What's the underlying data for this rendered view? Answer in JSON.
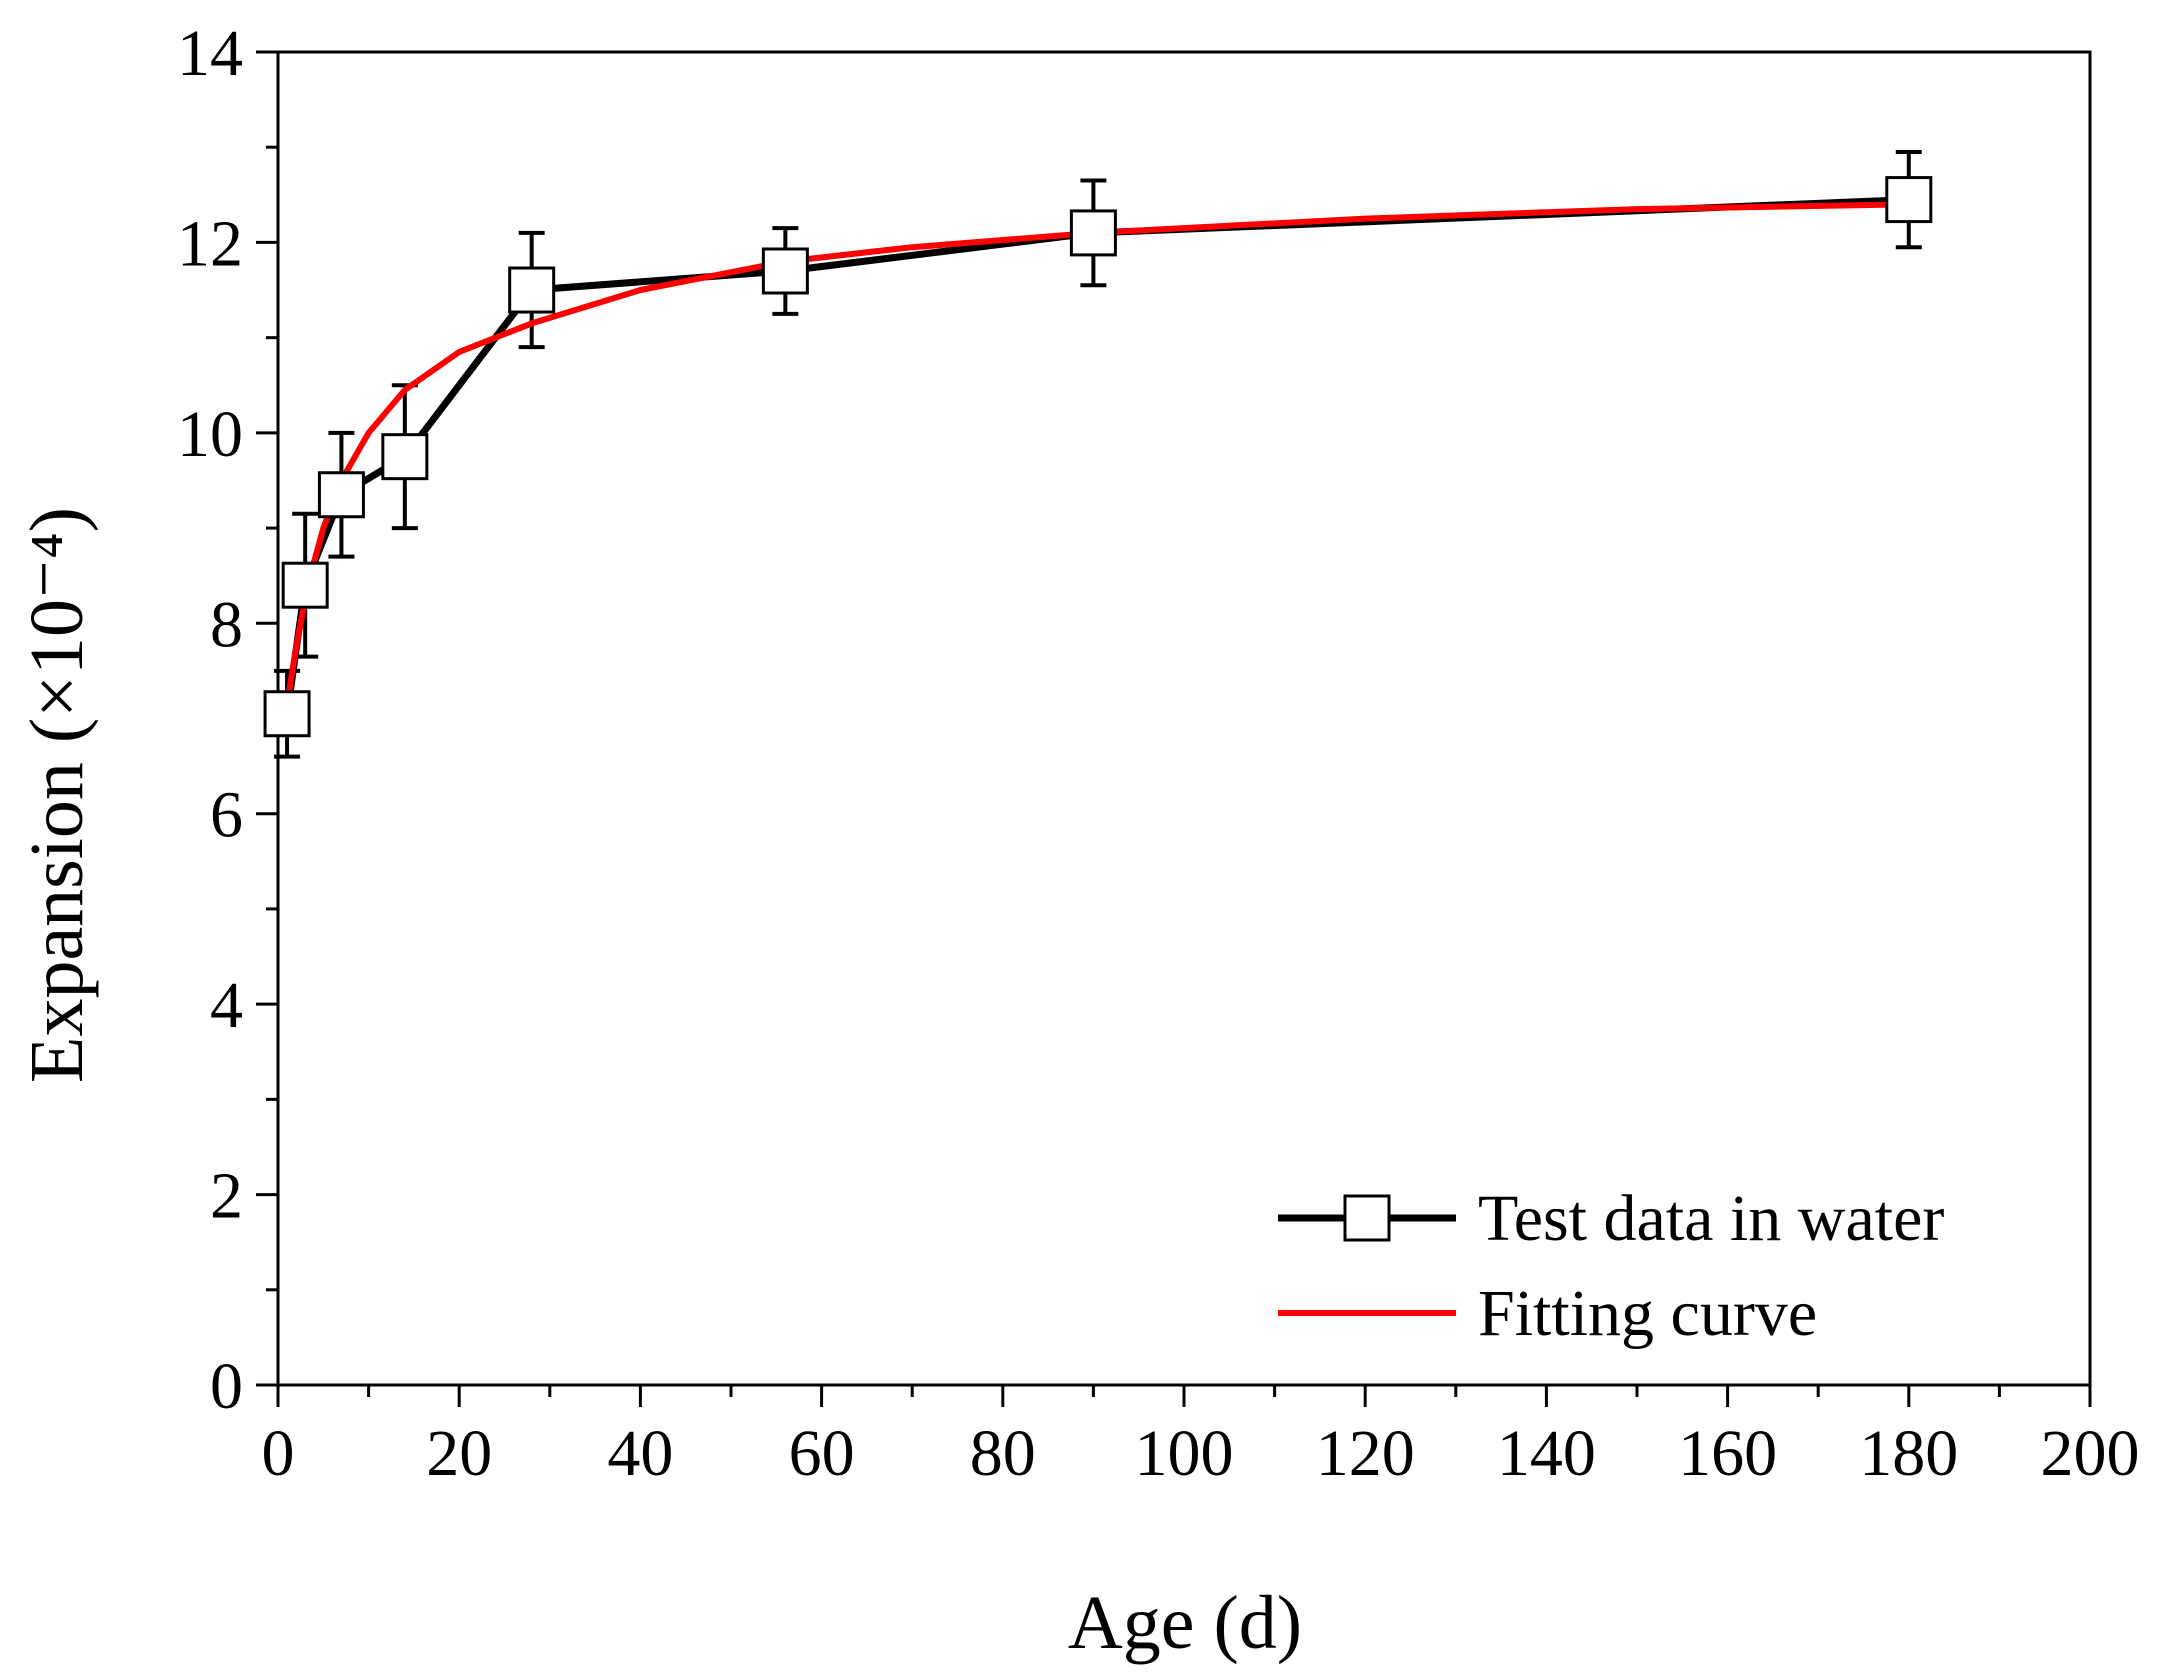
{
  "chart_data": {
    "type": "line",
    "title": "",
    "xlabel": "Age (d)",
    "ylabel": "Expansion (×10⁻⁴)",
    "xlim": [
      0,
      200
    ],
    "ylim": [
      0,
      14
    ],
    "x_ticks": [
      0,
      20,
      40,
      60,
      80,
      100,
      120,
      140,
      160,
      180,
      200
    ],
    "y_ticks": [
      0,
      2,
      4,
      6,
      8,
      10,
      12,
      14
    ],
    "grid": false,
    "legend_position": "bottom-right",
    "series": [
      {
        "name": "Test data in water",
        "style": "line+square-markers+error-bars",
        "color": "#000000",
        "x": [
          1,
          3,
          7,
          14,
          28,
          56,
          90,
          180
        ],
        "y": [
          7.05,
          8.4,
          9.35,
          9.75,
          11.5,
          11.7,
          12.1,
          12.45
        ],
        "error": [
          0.45,
          0.75,
          0.65,
          0.75,
          0.6,
          0.45,
          0.55,
          0.5
        ]
      },
      {
        "name": "Fitting curve",
        "style": "line",
        "color": "#ff0000",
        "x": [
          1,
          2,
          3,
          4,
          5,
          7,
          10,
          14,
          20,
          28,
          40,
          56,
          70,
          90,
          120,
          150,
          180
        ],
        "y": [
          7.15,
          7.75,
          8.25,
          8.65,
          9.0,
          9.5,
          10.0,
          10.45,
          10.85,
          11.15,
          11.5,
          11.8,
          11.95,
          12.1,
          12.25,
          12.35,
          12.4
        ]
      }
    ]
  }
}
